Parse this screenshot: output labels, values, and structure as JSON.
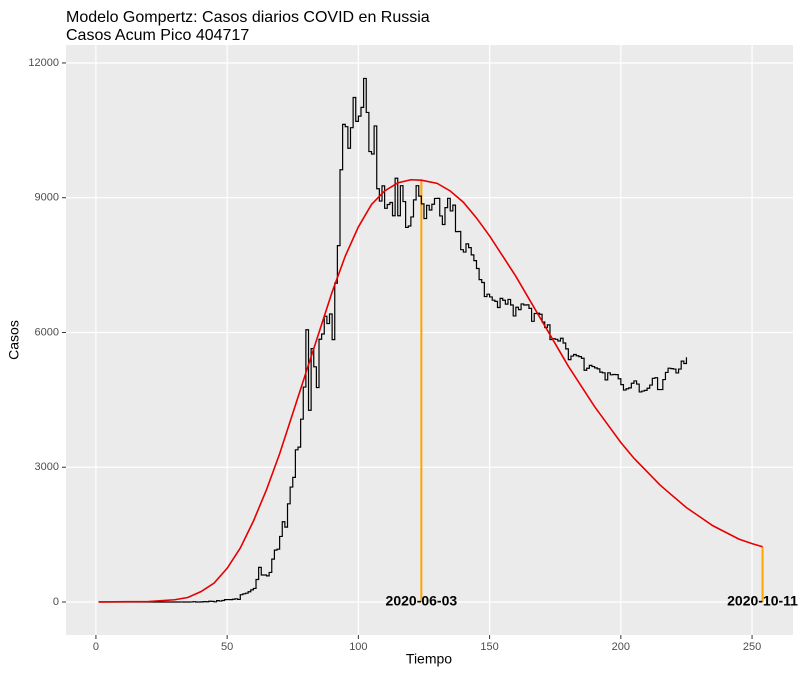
{
  "chart_data": {
    "type": "line",
    "title": "Modelo Gompertz: Casos diarios COVID en Russia",
    "subtitle": "Casos Acum Pico 404717",
    "xlabel": "Tiempo",
    "ylabel": "Casos",
    "xlim": [
      -11.4,
      265.6
    ],
    "ylim": [
      -735,
      12400
    ],
    "xticks": [
      0,
      50,
      100,
      150,
      200,
      250
    ],
    "yticks": [
      0,
      3000,
      6000,
      9000,
      12000
    ],
    "grid": true,
    "series": [
      {
        "color": "#000000",
        "step": true,
        "x": [
          1,
          2,
          3,
          4,
          5,
          6,
          7,
          8,
          9,
          10,
          11,
          12,
          13,
          14,
          15,
          16,
          17,
          18,
          19,
          20,
          21,
          22,
          23,
          24,
          25,
          26,
          27,
          28,
          29,
          30,
          31,
          32,
          33,
          34,
          35,
          36,
          37,
          38,
          39,
          40,
          41,
          42,
          43,
          44,
          45,
          46,
          47,
          48,
          49,
          50,
          51,
          52,
          53,
          54,
          55,
          56,
          57,
          58,
          59,
          60,
          61,
          62,
          63,
          64,
          65,
          66,
          67,
          68,
          69,
          70,
          71,
          72,
          73,
          74,
          75,
          76,
          77,
          78,
          79,
          80,
          81,
          82,
          83,
          84,
          85,
          86,
          87,
          88,
          89,
          90,
          91,
          92,
          93,
          94,
          95,
          96,
          97,
          98,
          99,
          100,
          101,
          102,
          103,
          104,
          105,
          106,
          107,
          108,
          109,
          110,
          111,
          112,
          113,
          114,
          115,
          116,
          117,
          118,
          119,
          120,
          121,
          122,
          123,
          124,
          125,
          126,
          127,
          128,
          129,
          130,
          131,
          132,
          133,
          134,
          135,
          136,
          137,
          138,
          139,
          140,
          141,
          142,
          143,
          144,
          145,
          146,
          147,
          148,
          149,
          150,
          151,
          152,
          153,
          154,
          155,
          156,
          157,
          158,
          159,
          160,
          161,
          162,
          163,
          164,
          165,
          166,
          167,
          168,
          169,
          170,
          171,
          172,
          173,
          174,
          175,
          176,
          177,
          178,
          179,
          180,
          181,
          182,
          183,
          184,
          185,
          186,
          187,
          188,
          189,
          190,
          191,
          192,
          193,
          194,
          195,
          196,
          197,
          198,
          199,
          200,
          201,
          202,
          203,
          204,
          205,
          206,
          207,
          208,
          209,
          210,
          211,
          212,
          213,
          214,
          215,
          216,
          217,
          218,
          219,
          220,
          221,
          222,
          223,
          224,
          225
        ],
        "values": [
          2,
          0,
          0,
          0,
          0,
          0,
          0,
          0,
          0,
          0,
          0,
          0,
          0,
          0,
          0,
          0,
          0,
          0,
          0,
          0,
          0,
          0,
          0,
          0,
          0,
          0,
          0,
          0,
          0,
          0,
          0,
          1,
          0,
          0,
          0,
          1,
          7,
          0,
          0,
          3,
          8,
          6,
          17,
          14,
          4,
          30,
          21,
          33,
          52,
          54,
          53,
          61,
          71,
          57,
          163,
          182,
          196,
          228,
          270,
          302,
          500,
          771,
          601,
          601,
          582,
          658,
          954,
          1154,
          1175,
          1459,
          1786,
          1667,
          2186,
          2558,
          2774,
          3388,
          3448,
          4070,
          4785,
          6060,
          4268,
          5642,
          5236,
          4774,
          5849,
          5966,
          6361,
          6198,
          6411,
          5841,
          7099,
          7933,
          9623,
          10633,
          10581,
          10102,
          10559,
          11231,
          10699,
          10817,
          11012,
          11656,
          10899,
          10028,
          9974,
          10598,
          9200,
          8926,
          9263,
          8764,
          8849,
          8894,
          8599,
          9434,
          8599,
          9268,
          8915,
          8338,
          8371,
          8572,
          8952,
          9268,
          9035,
          8863,
          8536,
          8831,
          8726,
          8855,
          8984,
          8985,
          8595,
          8404,
          8779,
          8987,
          8706,
          8835,
          8246,
          8248,
          7843,
          7790,
          7972,
          7889,
          7728,
          7600,
          7425,
          7176,
          7113,
          6800,
          6852,
          6791,
          6719,
          6693,
          6556,
          6760,
          6718,
          6632,
          6736,
          6611,
          6368,
          6562,
          6509,
          6635,
          6611,
          6615,
          6537,
          6248,
          6422,
          6428,
          6406,
          6234,
          6109,
          6170,
          5842,
          5862,
          5848,
          5811,
          5871,
          5765,
          5635,
          5395,
          5475,
          5509,
          5482,
          5462,
          5427,
          5159,
          5204,
          5267,
          5241,
          5212,
          5189,
          5118,
          5102,
          4945,
          5102,
          5057,
          5065,
          5061,
          4969,
          4839,
          4718,
          4748,
          4767,
          4870,
          4921,
          4852,
          4676,
          4696,
          4711,
          4758,
          4829,
          4980,
          4993,
          4729,
          4729,
          4952,
          5110,
          5205,
          5195,
          5185,
          5099,
          5185,
          5363,
          5310,
          5449
        ]
      },
      {
        "color": "#e60000",
        "x": [
          1,
          20,
          30,
          35,
          40,
          45,
          50,
          55,
          60,
          65,
          70,
          75,
          80,
          85,
          90,
          95,
          100,
          105,
          110,
          115,
          120,
          124,
          130,
          135,
          140,
          145,
          150,
          155,
          160,
          165,
          170,
          175,
          180,
          185,
          190,
          195,
          200,
          205,
          210,
          215,
          220,
          225,
          230,
          235,
          240,
          245,
          250,
          254
        ],
        "values": [
          0,
          10,
          50,
          100,
          230,
          420,
          750,
          1200,
          1800,
          2500,
          3300,
          4200,
          5100,
          6000,
          6900,
          7700,
          8350,
          8850,
          9150,
          9330,
          9400,
          9390,
          9320,
          9150,
          8900,
          8550,
          8150,
          7700,
          7250,
          6750,
          6250,
          5750,
          5250,
          4800,
          4350,
          3950,
          3550,
          3200,
          2900,
          2600,
          2350,
          2100,
          1900,
          1700,
          1550,
          1400,
          1300,
          1230
        ]
      }
    ],
    "vlines": [
      {
        "x": 124,
        "y": 9390,
        "label": "2020-06-03",
        "color": "#ffa500"
      },
      {
        "x": 254,
        "y": 1230,
        "label": "2020-10-11",
        "color": "#ffa500"
      }
    ]
  }
}
